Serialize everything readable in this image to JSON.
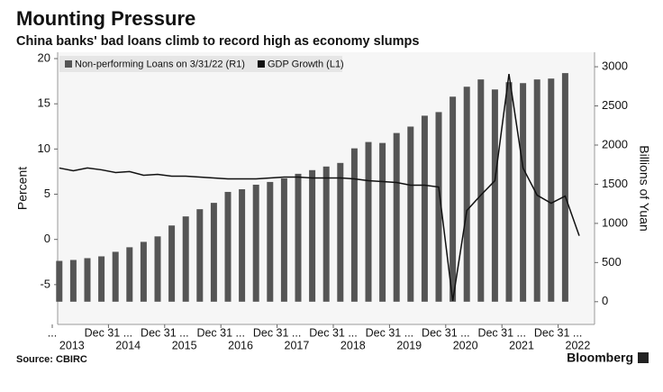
{
  "chart_data": {
    "type": "bar-line",
    "title": "Mounting Pressure",
    "subtitle": "China banks' bad loans climb to record high as economy slumps",
    "source": "Source: CBIRC",
    "brand": "Bloomberg",
    "y_label": "Percent",
    "y2_label": "Billions of Yuan",
    "categories": [
      "2013",
      null,
      null,
      null,
      "2014",
      null,
      null,
      null,
      "2015",
      null,
      null,
      null,
      "2016",
      null,
      null,
      null,
      "2017",
      null,
      null,
      null,
      "2018",
      null,
      null,
      null,
      "2019",
      null,
      null,
      null,
      "2020",
      null,
      null,
      null,
      "2021",
      null,
      null,
      null,
      "2022",
      null
    ],
    "category_notes": [
      "...",
      null,
      null,
      null,
      "Dec 31 ...",
      null,
      null,
      null,
      "Dec 31 ...",
      null,
      null,
      null,
      "Dec 31 ...",
      null,
      null,
      null,
      "Dec 31 ...",
      null,
      null,
      null,
      "Dec 31 ...",
      null,
      null,
      null,
      "Dec 31 ...",
      null,
      null,
      null,
      "Dec 31 ...",
      null,
      null,
      null,
      "Dec 31 ...",
      null,
      null,
      null,
      "Dec 31 ...",
      null
    ],
    "series": [
      {
        "name": "Non-performing Loans on 3/31/22 (R1)",
        "type": "bar",
        "axis": "y2",
        "color": "#555555",
        "values": [
          521,
          533,
          556,
          579,
          637,
          695,
          764,
          834,
          973,
          1089,
          1181,
          1262,
          1402,
          1436,
          1494,
          1529,
          1575,
          1633,
          1680,
          1726,
          1772,
          1958,
          2039,
          2027,
          2154,
          2236,
          2375,
          2421,
          2618,
          2745,
          2838,
          2710,
          2803,
          2791,
          2838,
          2849,
          2919,
          null
        ]
      },
      {
        "name": "GDP Growth (L1)",
        "type": "line",
        "axis": "y",
        "color": "#111111",
        "values": [
          7.9,
          7.6,
          7.9,
          7.7,
          7.4,
          7.5,
          7.1,
          7.2,
          7.0,
          7.0,
          6.9,
          6.8,
          6.7,
          6.7,
          6.7,
          6.8,
          6.9,
          6.9,
          6.8,
          6.8,
          6.8,
          6.7,
          6.5,
          6.4,
          6.3,
          6.0,
          6.0,
          5.8,
          -6.8,
          3.2,
          4.9,
          6.5,
          18.3,
          7.9,
          4.9,
          4.0,
          4.8,
          0.4
        ]
      }
    ],
    "ylim": [
      -9.4,
      20.7
    ],
    "yticks": [
      -5,
      0,
      5,
      10,
      15,
      20
    ],
    "y2lim": [
      -290,
      3185
    ],
    "y2ticks": [
      0,
      500,
      1000,
      1500,
      2000,
      2500,
      3000
    ],
    "legend": "top-left"
  }
}
